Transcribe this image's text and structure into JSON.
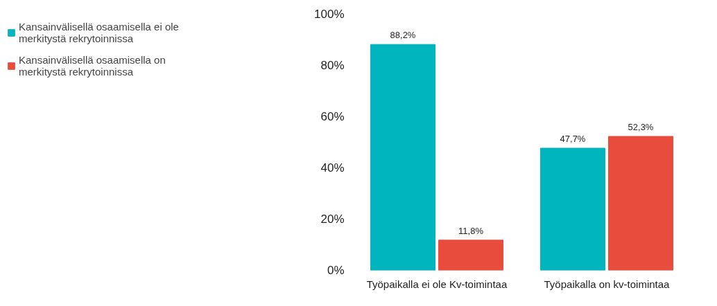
{
  "chart_data": {
    "type": "bar",
    "categories": [
      "Työpaikalla ei ole Kv-toimintaa",
      "Työpaikalla on kv-toimintaa"
    ],
    "series": [
      {
        "name": "Kansainvälisellä osaamisella ei ole merkitystä rekrytoinnissa",
        "color": "#00b5bd",
        "values": [
          88.2,
          47.7
        ],
        "value_labels": [
          "88,2%",
          "47,7%"
        ]
      },
      {
        "name": "Kansainvälisellä osaamisella on merkitystä rekrytoinnissa",
        "color": "#e84c3d",
        "values": [
          11.8,
          52.3
        ],
        "value_labels": [
          "11,8%",
          "52,3%"
        ]
      }
    ],
    "ylim": [
      0,
      100
    ],
    "yticks": [
      {
        "value": 0,
        "label": "0%"
      },
      {
        "value": 20,
        "label": "20%"
      },
      {
        "value": 40,
        "label": "40%"
      },
      {
        "value": 60,
        "label": "60%"
      },
      {
        "value": 80,
        "label": "80%"
      },
      {
        "value": 100,
        "label": "100%"
      }
    ],
    "grid": false,
    "legend": "top left"
  }
}
